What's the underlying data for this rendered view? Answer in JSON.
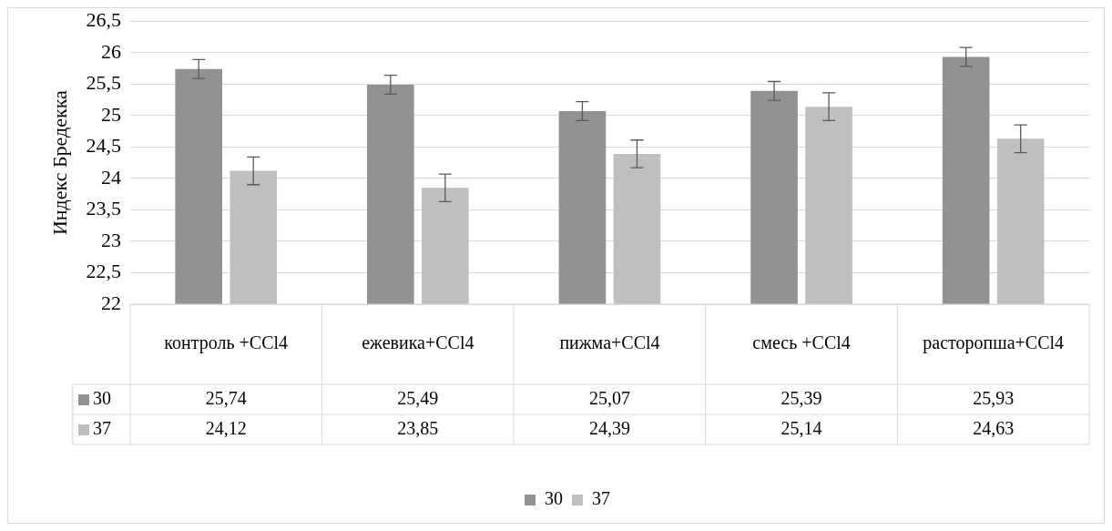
{
  "chart_data": {
    "type": "bar",
    "ylabel": "Индекс Бредекка",
    "categories": [
      "контроль +CCl4",
      "ежевика+CCl4",
      "пижма+CCl4",
      "смесь +CCl4",
      "расторопша+CCl4"
    ],
    "series": [
      {
        "name": "30",
        "color": "#929292",
        "values": [
          25.74,
          25.49,
          25.07,
          25.39,
          25.93
        ],
        "value_labels": [
          "25,74",
          "25,49",
          "25,07",
          "25,39",
          "25,93"
        ],
        "errors": [
          0.15,
          0.15,
          0.15,
          0.15,
          0.15
        ]
      },
      {
        "name": "37",
        "color": "#bfbfbf",
        "values": [
          24.12,
          23.85,
          24.39,
          25.14,
          24.63
        ],
        "value_labels": [
          "24,12",
          "23,85",
          "24,39",
          "25,14",
          "24,63"
        ],
        "errors": [
          0.22,
          0.22,
          0.22,
          0.22,
          0.22
        ]
      }
    ],
    "ylim": [
      22,
      26.5
    ],
    "yticks": [
      22,
      {
        "value": 22.5,
        "label": "22,5"
      },
      23,
      {
        "value": 23.5,
        "label": "23,5"
      },
      24,
      {
        "value": 24.5,
        "label": "24,5"
      },
      25,
      {
        "value": 25.5,
        "label": "25,5"
      },
      26,
      {
        "value": 26.5,
        "label": "26,5"
      }
    ],
    "grid": "y",
    "legend": "bottom"
  }
}
